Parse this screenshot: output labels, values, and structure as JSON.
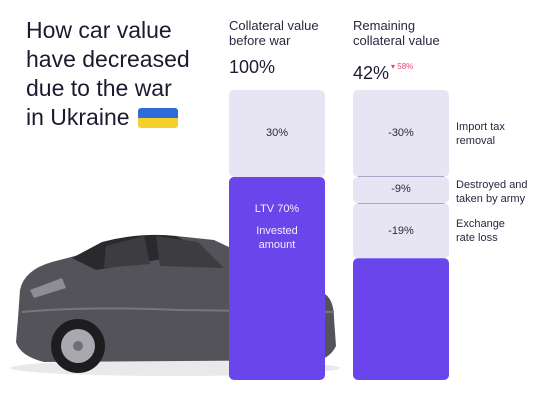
{
  "title_lines": [
    "How car value",
    "have decreased",
    "due to the war",
    "in Ukraine"
  ],
  "colors": {
    "light_bar": "#e7e5f3",
    "purple": "#6a45ec",
    "flag_blue": "#2f6bd8",
    "flag_yellow": "#f6cf2a",
    "change_color": "#e0457b"
  },
  "columns": {
    "before": {
      "header": "Collateral value before war",
      "value": "100%"
    },
    "after": {
      "header": "Remaining collateral value",
      "value": "42%",
      "change": "58%"
    }
  },
  "chart_data": {
    "type": "bar",
    "title": "How car value have decreased due to the war in Ukraine",
    "ylim": [
      0,
      100
    ],
    "categories": [
      "Collateral value before war",
      "Remaining collateral value"
    ],
    "stacks": [
      {
        "category": "Collateral value before war",
        "segments": [
          {
            "label": "30%",
            "value": 30,
            "color": "#e7e5f3"
          },
          {
            "label": "LTV 70%",
            "sublabel": "Invested amount",
            "value": 70,
            "color": "#6a45ec"
          }
        ]
      },
      {
        "category": "Remaining collateral value",
        "segments": [
          {
            "label": "-30%",
            "value": 30,
            "color": "#e7e5f3",
            "annotation": "Import tax removal"
          },
          {
            "label": "-9%",
            "value": 9,
            "color": "#e7e5f3",
            "annotation": "Destroyed and taken by army"
          },
          {
            "label": "-19%",
            "value": 19,
            "color": "#e7e5f3",
            "annotation": "Exchange rate loss"
          },
          {
            "label": "",
            "value": 42,
            "color": "#6a45ec"
          }
        ]
      }
    ]
  }
}
